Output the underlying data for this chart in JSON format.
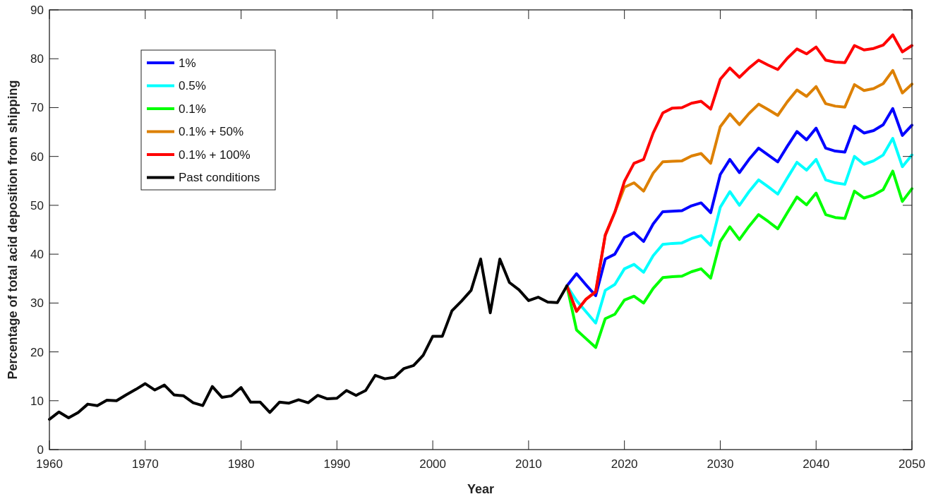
{
  "chart_data": {
    "type": "line",
    "xlabel": "Year",
    "ylabel": "Percentage of total acid deposition from shipping",
    "xlim": [
      1960,
      2050
    ],
    "ylim": [
      0,
      90
    ],
    "xticks": [
      1960,
      1970,
      1980,
      1990,
      2000,
      2010,
      2020,
      2030,
      2040,
      2050
    ],
    "yticks": [
      0,
      10,
      20,
      30,
      40,
      50,
      60,
      70,
      80,
      90
    ],
    "grid": false,
    "legend": "top left",
    "marker": "none",
    "line_style": "solid",
    "series": [
      {
        "name": "1%",
        "color": "#0000ff",
        "x": [
          2014,
          2015,
          2016,
          2017,
          2018,
          2019,
          2020,
          2021,
          2022,
          2023,
          2024,
          2025,
          2026,
          2027,
          2028,
          2029,
          2030,
          2031,
          2032,
          2033,
          2034,
          2035,
          2036,
          2037,
          2038,
          2039,
          2040,
          2041,
          2042,
          2043,
          2044,
          2045,
          2046,
          2047,
          2048,
          2049,
          2050
        ],
        "values": [
          33.5,
          36.0,
          33.7,
          31.5,
          39.0,
          40.0,
          43.4,
          44.4,
          42.6,
          46.2,
          48.7,
          48.8,
          48.9,
          49.9,
          50.5,
          48.5,
          56.3,
          59.4,
          56.7,
          59.4,
          61.7,
          60.3,
          58.9,
          62.1,
          65.1,
          63.4,
          65.8,
          61.7,
          61.1,
          60.9,
          66.2,
          64.8,
          65.3,
          66.5,
          69.8,
          64.3,
          66.4
        ]
      },
      {
        "name": "0.5%",
        "color": "#00ffff",
        "x": [
          2014,
          2015,
          2016,
          2017,
          2018,
          2019,
          2020,
          2021,
          2022,
          2023,
          2024,
          2025,
          2026,
          2027,
          2028,
          2029,
          2030,
          2031,
          2032,
          2033,
          2034,
          2035,
          2036,
          2037,
          2038,
          2039,
          2040,
          2041,
          2042,
          2043,
          2044,
          2045,
          2046,
          2047,
          2048,
          2049,
          2050
        ],
        "values": [
          33.5,
          30.5,
          28.2,
          25.9,
          32.6,
          33.8,
          37.0,
          37.9,
          36.3,
          39.7,
          42.0,
          42.2,
          42.3,
          43.2,
          43.8,
          41.8,
          49.6,
          52.8,
          50.0,
          52.8,
          55.2,
          53.8,
          52.3,
          55.6,
          58.8,
          57.2,
          59.4,
          55.2,
          54.6,
          54.3,
          60.0,
          58.4,
          59.1,
          60.3,
          63.7,
          57.9,
          60.3
        ]
      },
      {
        "name": "0.1%",
        "color": "#00ff00",
        "x": [
          2014,
          2015,
          2016,
          2017,
          2018,
          2019,
          2020,
          2021,
          2022,
          2023,
          2024,
          2025,
          2026,
          2027,
          2028,
          2029,
          2030,
          2031,
          2032,
          2033,
          2034,
          2035,
          2036,
          2037,
          2038,
          2039,
          2040,
          2041,
          2042,
          2043,
          2044,
          2045,
          2046,
          2047,
          2048,
          2049,
          2050
        ],
        "values": [
          33.5,
          24.5,
          22.7,
          20.9,
          26.8,
          27.7,
          30.6,
          31.4,
          30.0,
          33.0,
          35.2,
          35.4,
          35.5,
          36.4,
          37.0,
          35.1,
          42.6,
          45.6,
          43.0,
          45.7,
          48.1,
          46.7,
          45.2,
          48.5,
          51.7,
          50.1,
          52.5,
          48.1,
          47.5,
          47.3,
          52.9,
          51.5,
          52.1,
          53.2,
          57.0,
          50.8,
          53.4
        ]
      },
      {
        "name": "0.1% + 50%",
        "color": "#dd8000",
        "x": [
          2014,
          2015,
          2016,
          2017,
          2018,
          2019,
          2020,
          2021,
          2022,
          2023,
          2024,
          2025,
          2026,
          2027,
          2028,
          2029,
          2030,
          2031,
          2032,
          2033,
          2034,
          2035,
          2036,
          2037,
          2038,
          2039,
          2040,
          2041,
          2042,
          2043,
          2044,
          2045,
          2046,
          2047,
          2048,
          2049,
          2050
        ],
        "values": [
          33.5,
          28.3,
          30.8,
          32.3,
          43.9,
          48.6,
          53.7,
          54.6,
          52.9,
          56.6,
          58.9,
          59.0,
          59.1,
          60.1,
          60.6,
          58.6,
          66.1,
          68.7,
          66.5,
          68.8,
          70.7,
          69.6,
          68.4,
          71.2,
          73.6,
          72.3,
          74.3,
          70.8,
          70.3,
          70.1,
          74.7,
          73.5,
          73.9,
          74.9,
          77.6,
          73.0,
          74.8
        ]
      },
      {
        "name": "0.1% + 100%",
        "color": "#ff0000",
        "x": [
          2014,
          2015,
          2016,
          2017,
          2018,
          2019,
          2020,
          2021,
          2022,
          2023,
          2024,
          2025,
          2026,
          2027,
          2028,
          2029,
          2030,
          2031,
          2032,
          2033,
          2034,
          2035,
          2036,
          2037,
          2038,
          2039,
          2040,
          2041,
          2042,
          2043,
          2044,
          2045,
          2046,
          2047,
          2048,
          2049,
          2050
        ],
        "values": [
          33.5,
          28.3,
          30.8,
          32.3,
          43.9,
          48.6,
          54.9,
          58.6,
          59.4,
          64.8,
          68.9,
          69.9,
          70.0,
          70.9,
          71.3,
          69.7,
          75.8,
          78.1,
          76.2,
          78.1,
          79.7,
          78.7,
          77.8,
          80.1,
          82.0,
          81.0,
          82.4,
          79.7,
          79.3,
          79.2,
          82.7,
          81.8,
          82.1,
          82.8,
          84.9,
          81.4,
          82.7
        ]
      },
      {
        "name": "Past conditions",
        "color": "#000000",
        "x": [
          1960,
          1961,
          1962,
          1963,
          1964,
          1965,
          1966,
          1967,
          1968,
          1969,
          1970,
          1971,
          1972,
          1973,
          1974,
          1975,
          1976,
          1977,
          1978,
          1979,
          1980,
          1981,
          1982,
          1983,
          1984,
          1985,
          1986,
          1987,
          1988,
          1989,
          1990,
          1991,
          1992,
          1993,
          1994,
          1995,
          1996,
          1997,
          1998,
          1999,
          2000,
          2001,
          2002,
          2003,
          2004,
          2005,
          2006,
          2007,
          2008,
          2009,
          2010,
          2011,
          2012,
          2013,
          2014
        ],
        "values": [
          6.2,
          7.7,
          6.5,
          7.6,
          9.3,
          9.0,
          10.1,
          10.0,
          11.2,
          12.3,
          13.5,
          12.2,
          13.2,
          11.2,
          11.0,
          9.6,
          9.0,
          12.9,
          10.7,
          11.0,
          12.7,
          9.7,
          9.7,
          7.6,
          9.7,
          9.5,
          10.2,
          9.6,
          11.1,
          10.4,
          10.5,
          12.1,
          11.1,
          12.1,
          15.2,
          14.5,
          14.8,
          16.6,
          17.2,
          19.3,
          23.2,
          23.2,
          28.4,
          30.4,
          32.6,
          39.0,
          28.0,
          39.0,
          34.2,
          32.7,
          30.5,
          31.2,
          30.2,
          30.1,
          33.5
        ]
      }
    ]
  }
}
